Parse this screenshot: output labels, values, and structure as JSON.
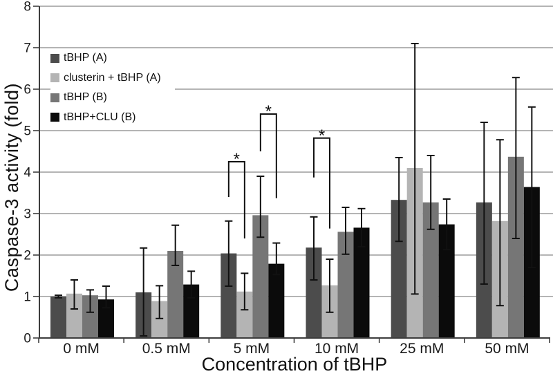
{
  "chart_data": {
    "type": "bar",
    "title": "",
    "xlabel": "Concentration of tBHP",
    "ylabel": "Caspase-3 activity (fold)",
    "ylim": [
      0,
      8
    ],
    "yticks": [
      0,
      1,
      2,
      3,
      4,
      5,
      6,
      7,
      8
    ],
    "grid": "horizontal",
    "legend_position": "top-left-inside",
    "categories": [
      "0 mM",
      "0.5 mM",
      "5 mM",
      "10 mM",
      "25 mM",
      "50 mM"
    ],
    "series": [
      {
        "name": "tBHP (A)",
        "color": "#4c4c4c",
        "values": [
          1.0,
          1.1,
          2.04,
          2.18,
          3.33,
          3.27
        ],
        "err_low": [
          0.97,
          0.05,
          1.25,
          1.4,
          2.33,
          1.3
        ],
        "err_high": [
          1.03,
          2.17,
          2.82,
          2.92,
          4.35,
          5.2
        ]
      },
      {
        "name": "clusterin + tBHP (A)",
        "color": "#b4b4b4",
        "values": [
          1.07,
          0.89,
          1.12,
          1.27,
          4.1,
          2.82
        ],
        "err_low": [
          0.7,
          0.47,
          0.68,
          0.62,
          1.06,
          0.78
        ],
        "err_high": [
          1.4,
          1.26,
          1.56,
          1.9,
          7.1,
          4.78
        ]
      },
      {
        "name": "tBHP (B)",
        "color": "#767676",
        "values": [
          1.03,
          2.1,
          2.96,
          2.56,
          3.27,
          4.37
        ],
        "err_low": [
          0.62,
          1.75,
          2.43,
          2.02,
          2.62,
          2.4
        ],
        "err_high": [
          1.16,
          2.72,
          3.9,
          3.15,
          4.4,
          6.28
        ]
      },
      {
        "name": "tBHP+CLU (B)",
        "color": "#0b0b0b",
        "values": [
          0.93,
          1.29,
          1.79,
          2.66,
          2.74,
          3.64
        ],
        "err_low": [
          0.73,
          0.97,
          1.53,
          2.2,
          2.13,
          1.7
        ],
        "err_high": [
          1.25,
          1.61,
          2.29,
          3.12,
          3.35,
          5.57
        ]
      }
    ],
    "significance_brackets": [
      {
        "category": "5 mM",
        "between": [
          "tBHP (A)",
          "clusterin + tBHP (A)"
        ],
        "label": "*",
        "top": 4.25,
        "left_drop_to": 3.4,
        "right_drop_to": 2.4
      },
      {
        "category": "5 mM",
        "between": [
          "tBHP (B)",
          "tBHP+CLU (B)"
        ],
        "label": "*",
        "top": 5.4,
        "left_drop_to": 4.5,
        "right_drop_to": 3.37
      },
      {
        "category": "10 mM",
        "between": [
          "tBHP (A)",
          "clusterin + tBHP (A)"
        ],
        "label": "*",
        "top": 4.82,
        "left_drop_to": 3.87,
        "right_drop_to": 2.64
      }
    ]
  }
}
